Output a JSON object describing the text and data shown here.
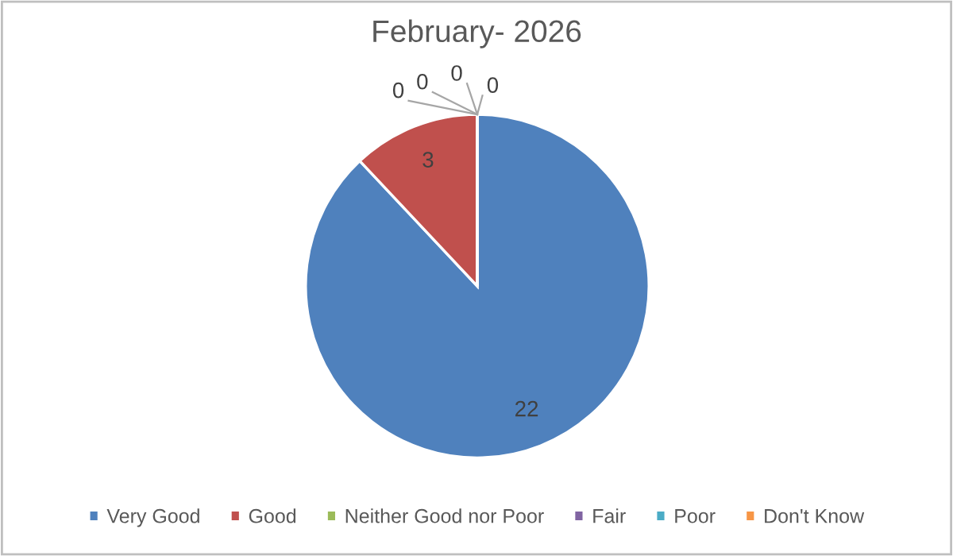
{
  "chart_data": {
    "type": "pie",
    "title": "February- 2026",
    "categories": [
      "Very Good",
      "Good",
      "Neither Good nor Poor",
      "Fair",
      "Poor",
      "Don't Know"
    ],
    "values": [
      22,
      3,
      0,
      0,
      0,
      0
    ],
    "colors": [
      "#4f81bd",
      "#c0504d",
      "#9bbb59",
      "#8064a2",
      "#4bacc6",
      "#f79646"
    ],
    "value_labels": [
      "22",
      "3",
      "0",
      "0",
      "0",
      "0"
    ],
    "legend": "bottom"
  }
}
